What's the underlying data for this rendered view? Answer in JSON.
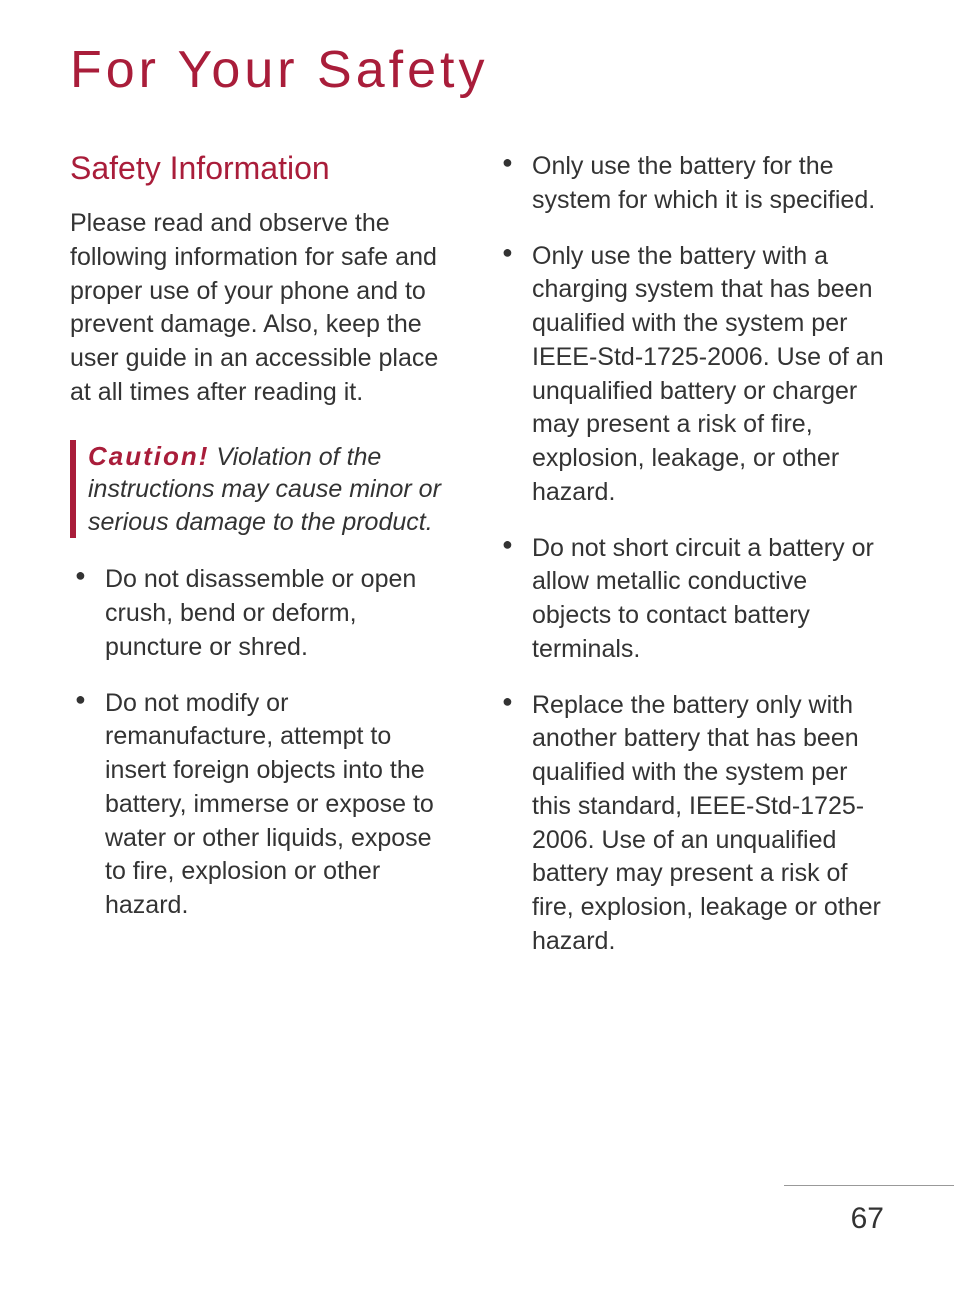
{
  "page_title": "For Your Safety",
  "section_title": "Safety Information",
  "intro_text": "Please read and observe the following information for safe and proper use of your phone and to prevent damage. Also, keep the user guide in an accessible place at all times after reading it.",
  "caution": {
    "label": "Caution!",
    "text": "Violation of the instructions may cause minor or serious damage to the product."
  },
  "left_bullets": [
    "Do not disassemble or open crush, bend or deform, puncture or shred.",
    "Do not modify or remanufacture, attempt to insert foreign objects into the battery, immerse or expose to water or other liquids, expose to fire, explosion or other hazard."
  ],
  "right_bullets": [
    "Only use the battery for the system for which it is specified.",
    "Only use the battery with a charging system that has been qualified with the system per IEEE-Std-1725-2006. Use of an unqualified battery or charger may present a risk of fire, explosion, leakage, or other hazard.",
    "Do not short circuit a battery or allow metallic conductive objects to contact battery terminals.",
    "Replace the battery only with another battery that has been qualified with the system per this standard, IEEE-Std-1725-2006. Use of an unqualified battery may present a risk of fire, explosion, leakage or other hazard."
  ],
  "page_number": "67",
  "colors": {
    "accent": "#a91d3a",
    "text": "#333333",
    "background": "#ffffff"
  }
}
